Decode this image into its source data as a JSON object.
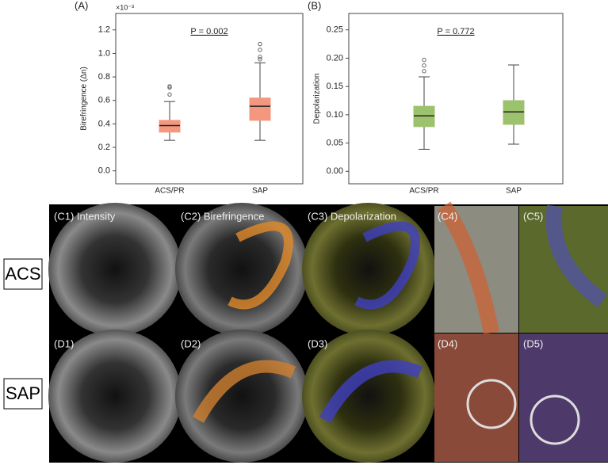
{
  "chart_data": [
    {
      "type": "box",
      "panel_label": "(A)",
      "ylabel": "Birefringence (Δn)",
      "scale_label": "×10⁻³",
      "annotation": "P = 0.002",
      "categories": [
        "ACS/PR",
        "SAP"
      ],
      "color": "#f4977f",
      "boxes": [
        {
          "whislo": 0.26,
          "q1": 0.33,
          "med": 0.386,
          "q3": 0.43,
          "whishi": 0.59,
          "fliers": [
            0.65,
            0.71,
            0.72
          ]
        },
        {
          "whislo": 0.26,
          "q1": 0.43,
          "med": 0.55,
          "q3": 0.62,
          "whishi": 0.92,
          "fliers": [
            0.95,
            0.97,
            1.03,
            1.08
          ]
        }
      ],
      "ylim": [
        -0.11,
        1.34
      ],
      "yticks": [
        {
          "value": 0,
          "label": "0.0"
        },
        0.2,
        0.4,
        0.6,
        0.8,
        {
          "value": 1,
          "label": "1.0"
        },
        1.2
      ]
    },
    {
      "type": "box",
      "panel_label": "(B)",
      "ylabel": "Depolarization",
      "annotation": "P = 0.772",
      "categories": [
        "ACS/PR",
        "SAP"
      ],
      "color": "#9dc26d",
      "boxes": [
        {
          "whislo": 0.039,
          "q1": 0.079,
          "med": 0.098,
          "q3": 0.115,
          "whishi": 0.167,
          "fliers": [
            0.177,
            0.187,
            0.197
          ]
        },
        {
          "whislo": 0.048,
          "q1": 0.083,
          "med": 0.105,
          "q3": 0.125,
          "whishi": 0.188,
          "fliers": []
        }
      ],
      "ylim": [
        -0.022,
        0.279
      ],
      "yticks": [
        {
          "value": 0,
          "label": "0.00"
        },
        0.05,
        {
          "value": 0.1,
          "label": "0.10"
        },
        0.15,
        {
          "value": 0.2,
          "label": "0.20"
        },
        0.25
      ]
    }
  ],
  "panels": {
    "rows": [
      {
        "label": "ACS",
        "images": [
          "(C1) Intensity",
          "(C2) Birefringence",
          "(C3) Depolarization",
          "(C4)",
          "(C5)"
        ]
      },
      {
        "label": "SAP",
        "images": [
          "(D1)",
          "(D2)",
          "(D3)",
          "(D4)",
          "(D5)"
        ]
      }
    ]
  }
}
